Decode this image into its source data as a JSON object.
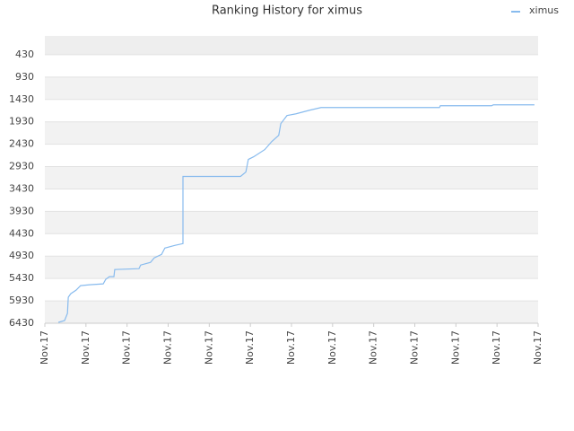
{
  "chart_data": {
    "type": "line",
    "title": "Ranking History for ximus",
    "x": [
      0.33,
      0.48,
      0.55,
      0.57,
      0.63,
      0.76,
      0.87,
      1.09,
      1.42,
      1.48,
      1.57,
      1.68,
      1.7,
      2.29,
      2.33,
      2.57,
      2.66,
      2.84,
      2.92,
      3.16,
      3.36,
      3.36,
      4.76,
      4.89,
      4.95,
      5.08,
      5.35,
      5.52,
      5.69,
      5.74,
      5.89,
      6.11,
      6.44,
      6.72,
      9.6,
      9.62,
      10.87,
      10.91,
      11.91
    ],
    "series": [
      {
        "name": "ximus",
        "color": "#88bbee",
        "values": [
          6410,
          6370,
          6210,
          5850,
          5770,
          5690,
          5590,
          5570,
          5550,
          5450,
          5390,
          5390,
          5230,
          5210,
          5130,
          5070,
          4970,
          4890,
          4750,
          4690,
          4650,
          3150,
          3150,
          3050,
          2770,
          2710,
          2550,
          2370,
          2230,
          1970,
          1790,
          1750,
          1670,
          1610,
          1610,
          1570,
          1570,
          1550,
          1550
        ]
      }
    ],
    "xlim": [
      0,
      12
    ],
    "xticks": [
      {
        "value": 0,
        "label": "Nov.17"
      },
      {
        "value": 1,
        "label": "Nov.17"
      },
      {
        "value": 2,
        "label": "Nov.17"
      },
      {
        "value": 3,
        "label": "Nov.17"
      },
      {
        "value": 4,
        "label": "Nov.17"
      },
      {
        "value": 5,
        "label": "Nov.17"
      },
      {
        "value": 6,
        "label": "Nov.17"
      },
      {
        "value": 7,
        "label": "Nov.17"
      },
      {
        "value": 8,
        "label": "Nov.17"
      },
      {
        "value": 9,
        "label": "Nov.17"
      },
      {
        "value": 10,
        "label": "Nov.17"
      },
      {
        "value": 11,
        "label": "Nov.17"
      },
      {
        "value": 12,
        "label": "Nov.17"
      }
    ],
    "ylim": [
      6430,
      10
    ],
    "yticks": [
      430,
      930,
      1430,
      1930,
      2430,
      2930,
      3430,
      3930,
      4430,
      4930,
      5430,
      5930,
      6430
    ],
    "grid": true,
    "legend": "top-right"
  }
}
